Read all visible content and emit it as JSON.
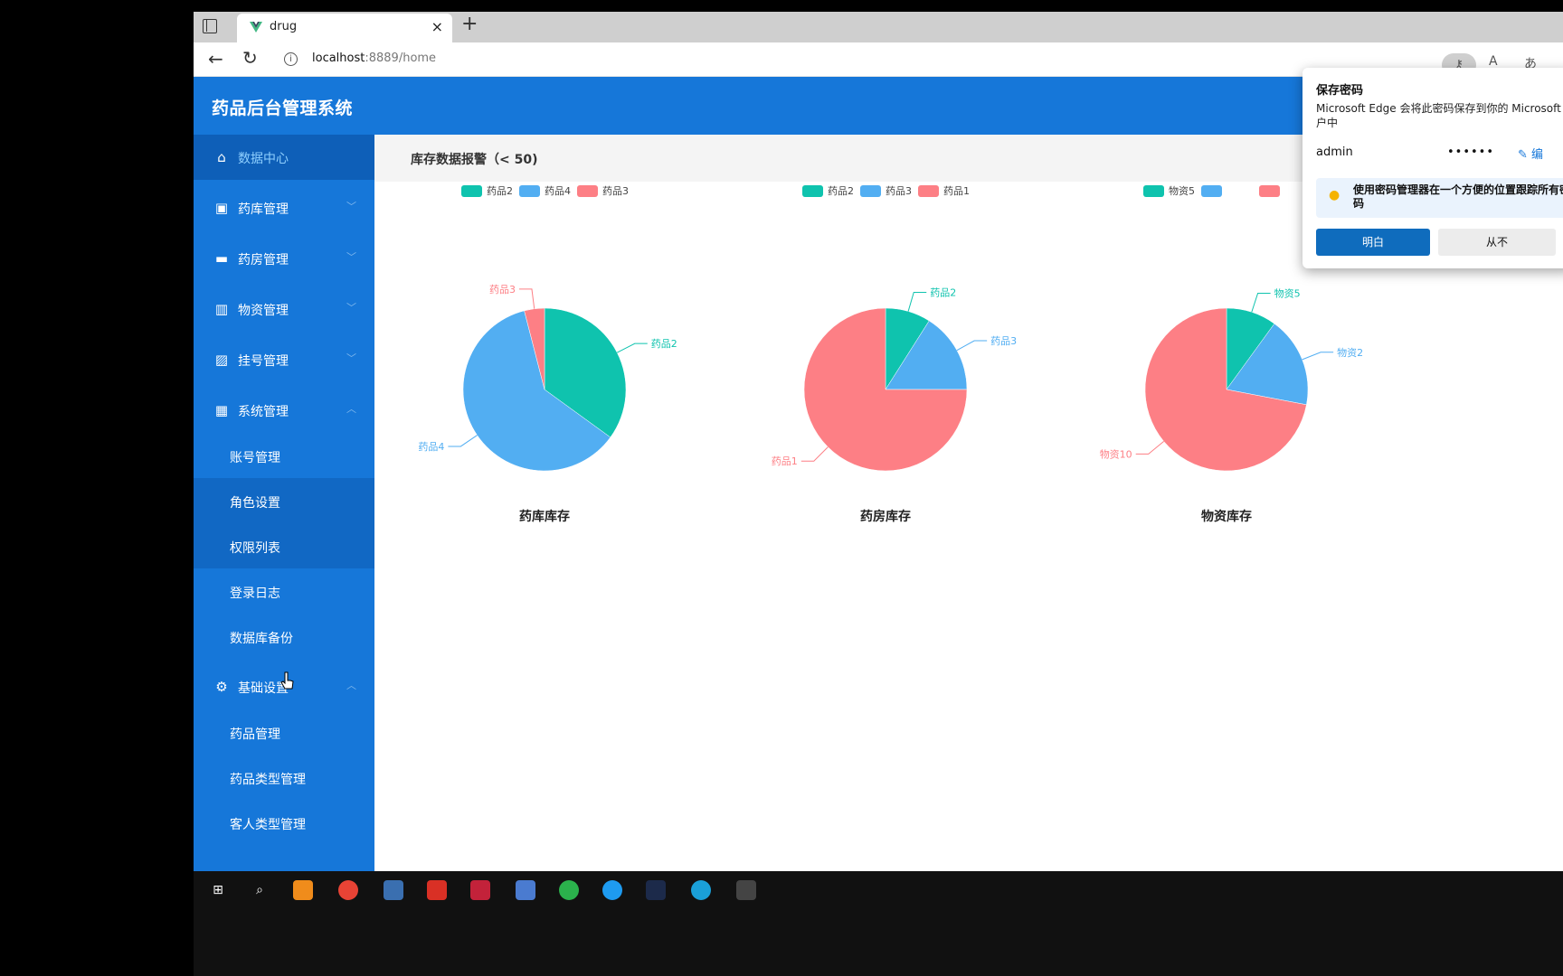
{
  "browser": {
    "tab_title": "drug",
    "url_host": "localhost",
    "url_rest": ":8889/home"
  },
  "app": {
    "title": "药品后台管理系统"
  },
  "sidebar": {
    "items": [
      {
        "label": "数据中心",
        "icon": "home-icon",
        "active": true
      },
      {
        "label": "药库管理",
        "icon": "warehouse-icon",
        "expanded": false
      },
      {
        "label": "药房管理",
        "icon": "pharmacy-icon",
        "expanded": false
      },
      {
        "label": "物资管理",
        "icon": "supplies-icon",
        "expanded": false
      },
      {
        "label": "挂号管理",
        "icon": "registration-icon",
        "expanded": false
      },
      {
        "label": "系统管理",
        "icon": "grid-icon",
        "expanded": true
      },
      {
        "label": "基础设置",
        "icon": "gear-icon",
        "expanded": true
      }
    ],
    "system_sub": [
      "账号管理",
      "角色设置",
      "权限列表",
      "登录日志",
      "数据库备份"
    ],
    "basic_sub": [
      "药品管理",
      "药品类型管理",
      "客人类型管理"
    ]
  },
  "main": {
    "header_title": "库存数据报警（< 50)"
  },
  "colors": {
    "teal": "#0fc3ae",
    "blue": "#52aef2",
    "red": "#fd7f85",
    "primary": "#1677d9"
  },
  "chart_data": [
    {
      "type": "pie",
      "title": "药库库存",
      "legend": [
        "药品2",
        "药品4",
        "药品3"
      ],
      "slices": [
        {
          "name": "药品2",
          "value": 35,
          "color": "#0fc3ae"
        },
        {
          "name": "药品4",
          "value": 61,
          "color": "#52aef2"
        },
        {
          "name": "药品3",
          "value": 4,
          "color": "#fd7f85"
        }
      ]
    },
    {
      "type": "pie",
      "title": "药房库存",
      "legend": [
        "药品2",
        "药品3",
        "药品1"
      ],
      "slices": [
        {
          "name": "药品2",
          "value": 9,
          "color": "#0fc3ae"
        },
        {
          "name": "药品3",
          "value": 16,
          "color": "#52aef2"
        },
        {
          "name": "药品1",
          "value": 75,
          "color": "#fd7f85"
        }
      ]
    },
    {
      "type": "pie",
      "title": "物资库存",
      "legend": [
        "物资5",
        "",
        ""
      ],
      "slices": [
        {
          "name": "物资5",
          "value": 10,
          "color": "#0fc3ae"
        },
        {
          "name": "物资2",
          "value": 18,
          "color": "#52aef2"
        },
        {
          "name": "物资10",
          "value": 72,
          "color": "#fd7f85"
        }
      ]
    }
  ],
  "popup": {
    "title": "保存密码",
    "desc": "Microsoft Edge 会将此密码保存到你的 Microsoft 帐户中",
    "username": "admin",
    "password": "••••••",
    "edit": "编",
    "tip": "使用密码管理器在一个方便的位置跟踪所有密码",
    "ok": "明白",
    "never": "从不"
  }
}
